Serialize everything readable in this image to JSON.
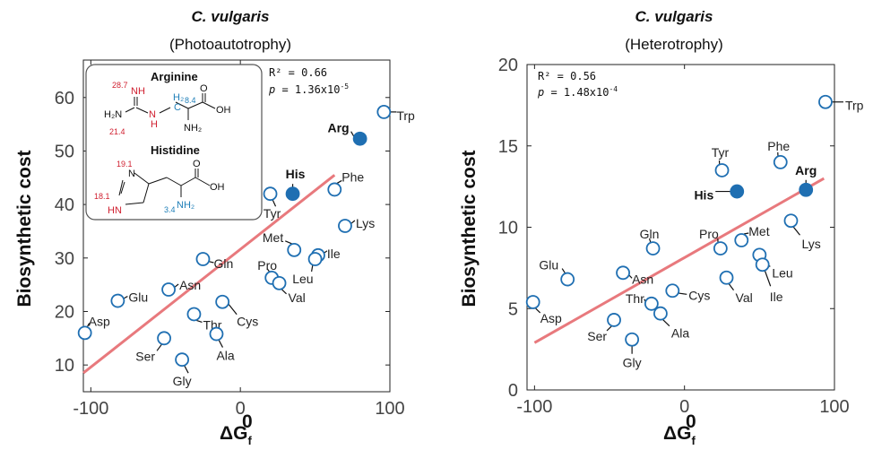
{
  "colors": {
    "marker": "#1f6fb2",
    "highlight_fill": "#1f6fb2",
    "fit_line": "#e8797d",
    "axis": "#222222",
    "label_red": "#d02030",
    "label_blue": "#1f7fb8"
  },
  "chart_data": [
    {
      "type": "scatter",
      "title": "C. vulgaris",
      "subtitle": "(Photoautotrophy)",
      "xlabel": "ΔG",
      "xlabel_sup": "0",
      "xlabel_sub": "f",
      "ylabel": "Biosynthetic cost",
      "xlim": [
        -105,
        100
      ],
      "ylim": [
        5,
        67
      ],
      "xticks": [
        -100,
        0,
        100
      ],
      "xtick_labels": [
        "-100",
        "0",
        "100"
      ],
      "yticks": [
        10,
        20,
        30,
        40,
        50,
        60
      ],
      "ytick_labels": [
        "10",
        "20",
        "30",
        "40",
        "50",
        "60"
      ],
      "grid": false,
      "stats": {
        "r2": "R² = 0.66",
        "p_prefix": "p",
        "p_value": " = 1.36x10",
        "p_exp": "-5"
      },
      "fit": {
        "x": [
          -105,
          63
        ],
        "y": [
          8.5,
          45.5
        ]
      },
      "inset": {
        "arginine_label": "Arginine",
        "histidine_label": "Histidine",
        "arg_numbers": [
          "28.7",
          "21.4",
          "8.4"
        ],
        "his_numbers": [
          "19.1",
          "18.1",
          "3.4"
        ],
        "atoms": {
          "nh": "NH",
          "h2n": "H₂N",
          "n": "N",
          "h": "H",
          "c": "C",
          "h2": "H₂",
          "oh": "OH",
          "o": "O",
          "nh2": "NH₂",
          "hn": "HN"
        }
      },
      "points": [
        {
          "name": "Trp",
          "x": 96,
          "y": 57.3,
          "highlight": false,
          "bold": false
        },
        {
          "name": "Arg",
          "x": 80,
          "y": 52.3,
          "highlight": true,
          "bold": true
        },
        {
          "name": "His",
          "x": 35,
          "y": 42,
          "highlight": true,
          "bold": true
        },
        {
          "name": "Phe",
          "x": 63,
          "y": 42.8,
          "highlight": false,
          "bold": false
        },
        {
          "name": "Tyr",
          "x": 20,
          "y": 42,
          "highlight": false,
          "bold": false
        },
        {
          "name": "Lys",
          "x": 70,
          "y": 36,
          "highlight": false,
          "bold": false
        },
        {
          "name": "Met",
          "x": 36,
          "y": 31.5,
          "highlight": false,
          "bold": false
        },
        {
          "name": "Ile",
          "x": 52,
          "y": 30.5,
          "highlight": false,
          "bold": false
        },
        {
          "name": "Leu",
          "x": 50,
          "y": 29.8,
          "highlight": false,
          "bold": false
        },
        {
          "name": "Gln",
          "x": -25,
          "y": 29.8,
          "highlight": false,
          "bold": false
        },
        {
          "name": "Pro",
          "x": 21,
          "y": 26.3,
          "highlight": false,
          "bold": false
        },
        {
          "name": "Val",
          "x": 26,
          "y": 25.3,
          "highlight": false,
          "bold": false
        },
        {
          "name": "Asn",
          "x": -48,
          "y": 24.1,
          "highlight": false,
          "bold": false
        },
        {
          "name": "Glu",
          "x": -82,
          "y": 22,
          "highlight": false,
          "bold": false
        },
        {
          "name": "Cys",
          "x": -12,
          "y": 21.8,
          "highlight": false,
          "bold": false
        },
        {
          "name": "Thr",
          "x": -31,
          "y": 19.5,
          "highlight": false,
          "bold": false
        },
        {
          "name": "Asp",
          "x": -104,
          "y": 16,
          "highlight": false,
          "bold": false
        },
        {
          "name": "Ala",
          "x": -16,
          "y": 15.8,
          "highlight": false,
          "bold": false
        },
        {
          "name": "Ser",
          "x": -51,
          "y": 15,
          "highlight": false,
          "bold": false
        },
        {
          "name": "Gly",
          "x": -39,
          "y": 11,
          "highlight": false,
          "bold": false
        }
      ]
    },
    {
      "type": "scatter",
      "title": "C. vulgaris",
      "subtitle": "(Heterotrophy)",
      "xlabel": "ΔG",
      "xlabel_sup": "0",
      "xlabel_sub": "f",
      "ylabel": "Biosynthetic cost",
      "xlim": [
        -105,
        100
      ],
      "ylim": [
        0,
        20
      ],
      "xticks": [
        -100,
        0,
        100
      ],
      "xtick_labels": [
        "-100",
        "0",
        "100"
      ],
      "yticks": [
        0,
        5,
        10,
        15,
        20
      ],
      "ytick_labels": [
        "0",
        "5",
        "10",
        "15",
        "20"
      ],
      "grid": false,
      "stats": {
        "r2": "R² = 0.56",
        "p_prefix": "p",
        "p_value": " = 1.48x10",
        "p_exp": "-4"
      },
      "fit": {
        "x": [
          -100,
          93
        ],
        "y": [
          2.9,
          13
        ]
      },
      "points": [
        {
          "name": "Trp",
          "x": 94,
          "y": 17.7,
          "highlight": false,
          "bold": false
        },
        {
          "name": "Phe",
          "x": 64,
          "y": 14,
          "highlight": false,
          "bold": false
        },
        {
          "name": "Tyr",
          "x": 25,
          "y": 13.5,
          "highlight": false,
          "bold": false
        },
        {
          "name": "Arg",
          "x": 81,
          "y": 12.3,
          "highlight": true,
          "bold": true
        },
        {
          "name": "His",
          "x": 35,
          "y": 12.2,
          "highlight": true,
          "bold": true
        },
        {
          "name": "Lys",
          "x": 71,
          "y": 10.4,
          "highlight": false,
          "bold": false
        },
        {
          "name": "Met",
          "x": 38,
          "y": 9.2,
          "highlight": false,
          "bold": false
        },
        {
          "name": "Pro",
          "x": 24,
          "y": 8.7,
          "highlight": false,
          "bold": false
        },
        {
          "name": "Gln",
          "x": -21,
          "y": 8.7,
          "highlight": false,
          "bold": false
        },
        {
          "name": "Leu",
          "x": 50,
          "y": 8.3,
          "highlight": false,
          "bold": false
        },
        {
          "name": "Ile",
          "x": 52,
          "y": 7.7,
          "highlight": false,
          "bold": false
        },
        {
          "name": "Asn",
          "x": -41,
          "y": 7.2,
          "highlight": false,
          "bold": false
        },
        {
          "name": "Val",
          "x": 28,
          "y": 6.9,
          "highlight": false,
          "bold": false
        },
        {
          "name": "Glu",
          "x": -78,
          "y": 6.8,
          "highlight": false,
          "bold": false
        },
        {
          "name": "Cys",
          "x": -8,
          "y": 6.1,
          "highlight": false,
          "bold": false
        },
        {
          "name": "Asp",
          "x": -101,
          "y": 5.4,
          "highlight": false,
          "bold": false
        },
        {
          "name": "Thr",
          "x": -22,
          "y": 5.3,
          "highlight": false,
          "bold": false
        },
        {
          "name": "Ala",
          "x": -16,
          "y": 4.7,
          "highlight": false,
          "bold": false
        },
        {
          "name": "Ser",
          "x": -47,
          "y": 4.3,
          "highlight": false,
          "bold": false
        },
        {
          "name": "Gly",
          "x": -35,
          "y": 3.1,
          "highlight": false,
          "bold": false
        }
      ]
    }
  ]
}
